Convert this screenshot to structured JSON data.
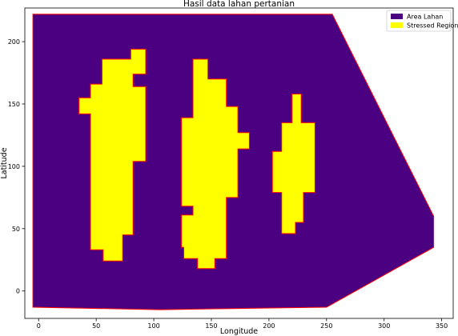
{
  "chart_data": {
    "type": "area",
    "title": "Hasil data lahan pertanian",
    "xlabel": "Longitude",
    "ylabel": "Latitude",
    "xlim": [
      -12,
      360
    ],
    "ylim": [
      -22,
      227
    ],
    "xticks": [
      0,
      50,
      100,
      150,
      200,
      250,
      300,
      350
    ],
    "yticks": [
      0,
      50,
      100,
      150,
      200
    ],
    "grid": false,
    "legend_position": "top-right",
    "series": [
      {
        "name": "Area Lahan",
        "color": "#4b0082",
        "edge_color": "#ff0000",
        "polygons": [
          [
            [
              -5,
              222
            ],
            [
              255,
              222
            ],
            [
              343,
              60
            ],
            [
              343,
              35
            ],
            [
              250,
              -13
            ],
            [
              105,
              -15
            ],
            [
              -5,
              -13
            ]
          ]
        ]
      },
      {
        "name": "Stressed Region",
        "color": "#ffff00",
        "edge_color": "#ff0000",
        "polygons": [
          [
            [
              55,
              186
            ],
            [
              80,
              186
            ],
            [
              80,
              194
            ],
            [
              93,
              194
            ],
            [
              93,
              174
            ],
            [
              82,
              174
            ],
            [
              82,
              164
            ],
            [
              93,
              164
            ],
            [
              93,
              104
            ],
            [
              82,
              104
            ],
            [
              82,
              45
            ],
            [
              73,
              45
            ],
            [
              73,
              24
            ],
            [
              56,
              24
            ],
            [
              56,
              33
            ],
            [
              45,
              33
            ],
            [
              45,
              142
            ],
            [
              35,
              142
            ],
            [
              35,
              155
            ],
            [
              45,
              155
            ],
            [
              45,
              166
            ],
            [
              55,
              166
            ]
          ],
          [
            [
              134,
              186
            ],
            [
              147,
              186
            ],
            [
              147,
              170
            ],
            [
              163,
              170
            ],
            [
              163,
              148
            ],
            [
              173,
              148
            ],
            [
              173,
              127
            ],
            [
              183,
              127
            ],
            [
              183,
              114
            ],
            [
              173,
              114
            ],
            [
              173,
              75
            ],
            [
              163,
              75
            ],
            [
              163,
              26
            ],
            [
              153,
              26
            ],
            [
              153,
              18
            ],
            [
              138,
              18
            ],
            [
              138,
              26
            ],
            [
              126,
              26
            ],
            [
              126,
              35
            ],
            [
              124,
              35
            ],
            [
              124,
              61
            ],
            [
              134,
              61
            ],
            [
              134,
              68
            ],
            [
              124,
              68
            ],
            [
              124,
              139
            ],
            [
              134,
              139
            ]
          ],
          [
            [
              220,
              158
            ],
            [
              228,
              158
            ],
            [
              228,
              135
            ],
            [
              240,
              135
            ],
            [
              240,
              79
            ],
            [
              230,
              79
            ],
            [
              230,
              55
            ],
            [
              223,
              55
            ],
            [
              223,
              46
            ],
            [
              211,
              46
            ],
            [
              211,
              79
            ],
            [
              203,
              79
            ],
            [
              203,
              112
            ],
            [
              211,
              112
            ],
            [
              211,
              135
            ],
            [
              220,
              135
            ]
          ]
        ]
      }
    ]
  }
}
